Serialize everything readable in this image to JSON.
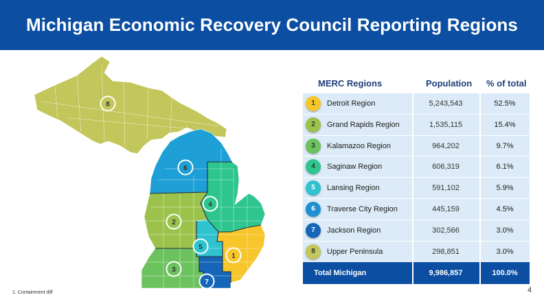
{
  "title": "Michigan Economic Recovery Council Reporting Regions",
  "table": {
    "headers": {
      "region": "MERC Regions",
      "population": "Population",
      "percent": "% of total"
    },
    "rows": [
      {
        "num": "1",
        "name": "Detroit Region",
        "population": "5,243,543",
        "percent": "52.5%",
        "color": "#f7c62a",
        "text_color": "#333333"
      },
      {
        "num": "2",
        "name": "Grand Rapids Region",
        "population": "1,535,115",
        "percent": "15.4%",
        "color": "#9cc24c",
        "text_color": "#333333"
      },
      {
        "num": "3",
        "name": "Kalamazoo Region",
        "population": "964,202",
        "percent": "9.7%",
        "color": "#6cc25e",
        "text_color": "#333333"
      },
      {
        "num": "4",
        "name": "Saginaw Region",
        "population": "606,319",
        "percent": "6.1%",
        "color": "#2ec58f",
        "text_color": "#333333"
      },
      {
        "num": "5",
        "name": "Lansing Region",
        "population": "591,102",
        "percent": "5.9%",
        "color": "#2fc3cf",
        "text_color": "#ffffff"
      },
      {
        "num": "6",
        "name": "Traverse City Region",
        "population": "445,159",
        "percent": "4.5%",
        "color": "#1e8fd0",
        "text_color": "#ffffff"
      },
      {
        "num": "7",
        "name": "Jackson Region",
        "population": "302,566",
        "percent": "3.0%",
        "color": "#1565b8",
        "text_color": "#ffffff"
      },
      {
        "num": "8",
        "name": "Upper Peninsula",
        "population": "298,851",
        "percent": "3.0%",
        "color": "#c3c65a",
        "text_color": "#333333"
      }
    ],
    "total": {
      "name": "Total Michigan",
      "population": "9,986,857",
      "percent": "100.0%"
    }
  },
  "map": {
    "labels": [
      "8",
      "6",
      "4",
      "2",
      "5",
      "1",
      "3",
      "7"
    ]
  },
  "footnote": "1. Containment diff",
  "page_number": "4"
}
